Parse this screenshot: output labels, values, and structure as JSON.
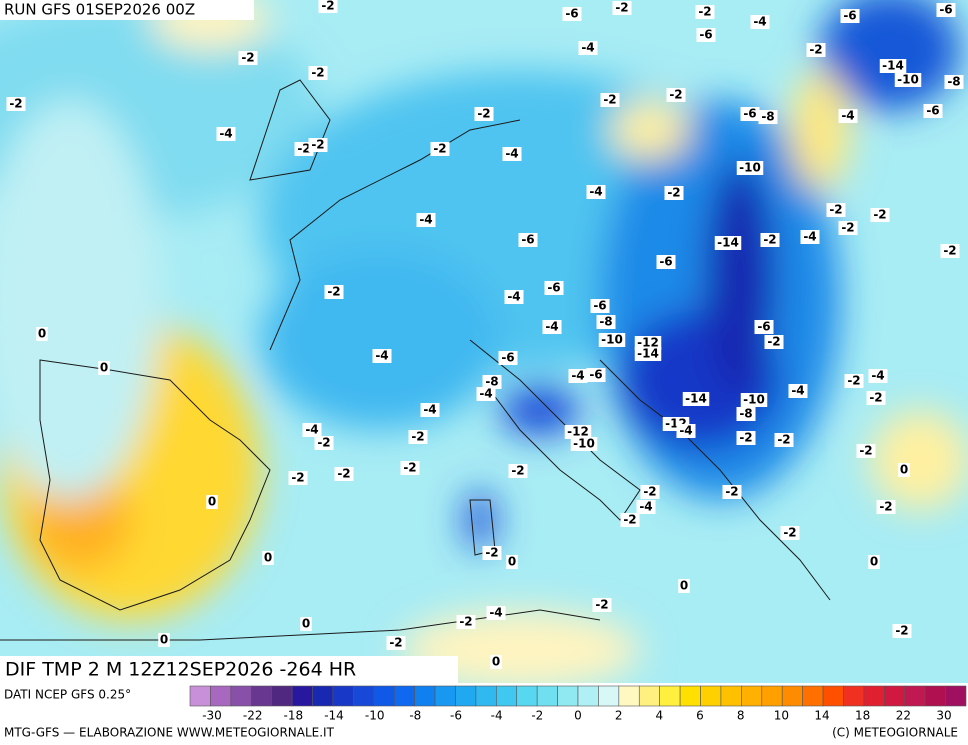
{
  "header": {
    "run": "RUN GFS 01SEP2026 00Z"
  },
  "map_title": "DIF TMP 2 M 12Z12SEP2026 -264 HR",
  "contour_labels": [
    -2,
    -6,
    -2,
    -2,
    -4,
    -6,
    -6,
    -6,
    -4,
    -2,
    -2,
    -2,
    -14,
    -10,
    -8,
    -2,
    -2,
    -2,
    -2,
    -4,
    -6,
    -8,
    -4,
    -6,
    -2,
    -2,
    -2,
    -4,
    -10,
    -4,
    -2,
    -4,
    -2,
    -2,
    -2,
    -6,
    -14,
    -2,
    -4,
    -2,
    -6,
    -2,
    -6,
    -4,
    -6,
    -8,
    -4,
    -6,
    -10,
    -12,
    -14,
    -2,
    0,
    -4,
    -6,
    0,
    -4,
    -6,
    -8,
    -4,
    -4,
    -14,
    -10,
    -8,
    -4,
    -2,
    -4,
    -2,
    -4,
    -2,
    -2,
    -12,
    -10,
    -12,
    -4,
    -2,
    -2,
    -2,
    -2,
    -2,
    -2,
    -2,
    0,
    -2,
    -4,
    -2,
    -2,
    -2,
    0,
    -2,
    0,
    -2,
    0,
    0,
    0,
    -2,
    -4,
    -2,
    0,
    0,
    -2,
    -2,
    0
  ],
  "legend": {
    "source": "DATI NCEP GFS 0.25°",
    "ticks": [
      -30,
      -22,
      -18,
      -14,
      -10,
      -8,
      -6,
      -4,
      -2,
      0,
      2,
      4,
      6,
      8,
      10,
      14,
      18,
      22,
      30
    ],
    "colors": [
      "#c890d8",
      "#a868c0",
      "#8850a8",
      "#683890",
      "#502880",
      "#2818a0",
      "#1828b0",
      "#1838c8",
      "#1848d8",
      "#1058e8",
      "#1068f0",
      "#1080f0",
      "#1898f0",
      "#20a8f0",
      "#30b8f0",
      "#40c8f0",
      "#58d8f0",
      "#70e0f0",
      "#90e8f0",
      "#b0f0f4",
      "#d8f8f8",
      "#fff8c0",
      "#fff080",
      "#fff040",
      "#ffe000",
      "#ffd000",
      "#ffc000",
      "#ffb000",
      "#ffa000",
      "#ff8c00",
      "#ff7000",
      "#ff5000",
      "#f03020",
      "#e02030",
      "#d01840",
      "#c01850",
      "#b01050",
      "#a01060"
    ]
  },
  "footer": {
    "left": "MTG-GFS — ELABORAZIONE WWW.METEOGIORNALE.IT",
    "right": "(C) METEOGIORNALE"
  }
}
